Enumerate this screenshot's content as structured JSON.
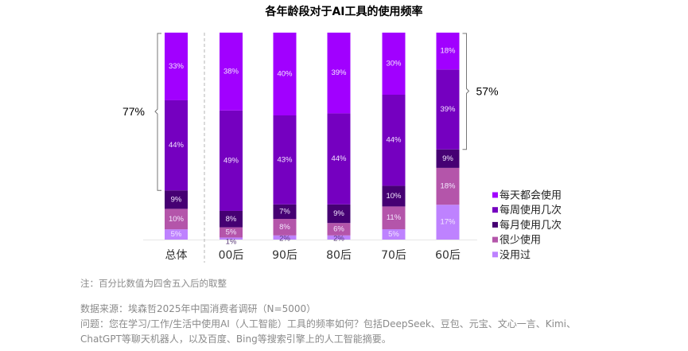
{
  "chart_data": {
    "type": "bar",
    "stacked": true,
    "percent": true,
    "title": "各年龄段对于AI工具的使用频率",
    "xlabel": "",
    "ylabel": "",
    "ylim": [
      0,
      100
    ],
    "grid": false,
    "legend_position": "right",
    "categories": [
      "总体",
      "00后",
      "90后",
      "80后",
      "70后",
      "60后"
    ],
    "series": [
      {
        "name": "没用过",
        "color": "#BE82FF",
        "values": [
          5,
          1,
          2,
          2,
          5,
          17
        ]
      },
      {
        "name": "很少使用",
        "color": "#B455AA",
        "values": [
          10,
          5,
          8,
          6,
          11,
          18
        ]
      },
      {
        "name": "每月使用几次",
        "color": "#460073",
        "values": [
          9,
          8,
          7,
          9,
          10,
          9
        ]
      },
      {
        "name": "每周使用几次",
        "color": "#7500C0",
        "values": [
          44,
          49,
          43,
          44,
          44,
          39
        ]
      },
      {
        "name": "每天都会使用",
        "color": "#A100FF",
        "values": [
          33,
          38,
          40,
          39,
          30,
          18
        ]
      }
    ],
    "legend_order": [
      "每天都会使用",
      "每周使用几次",
      "每月使用几次",
      "很少使用",
      "没用过"
    ],
    "annotations": [
      {
        "type": "brace",
        "category": "总体",
        "side": "left",
        "label": "77%",
        "covers": [
          "每天都会使用",
          "每周使用几次"
        ]
      },
      {
        "type": "brace",
        "category": "60后",
        "side": "right",
        "label": "57%",
        "covers": [
          "每天都会使用",
          "每周使用几次"
        ]
      }
    ],
    "separator_after_category": "总体"
  },
  "footnotes": {
    "note": "注：百分比数值为四舍五入后的取整",
    "source": "数据来源：埃森哲2025年中国消费者调研（N=5000）",
    "question_line1": "问题：您在学习/工作/生活中使用AI（人工智能）工具的频率如何？包括DeepSeek、豆包、元宝、文心一言、Kimi、",
    "question_line2": "ChatGPT等聊天机器人，以及百度、Bing等搜索引擎上的人工智能摘要。"
  }
}
